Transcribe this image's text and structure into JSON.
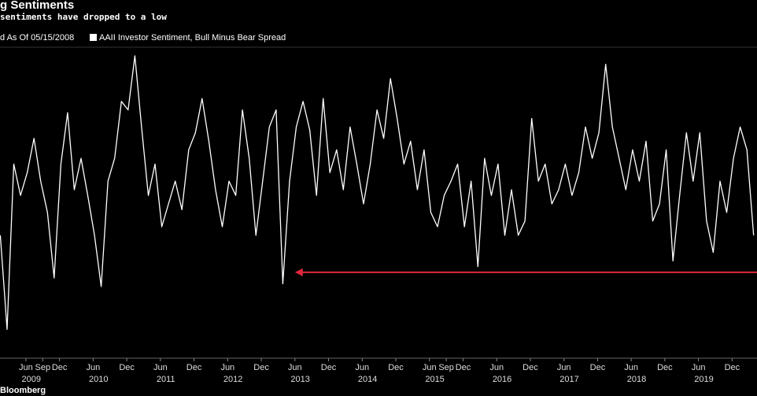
{
  "chart_data": {
    "type": "line",
    "title": "g Sentiments",
    "subtitle": "sentiments have dropped to a low",
    "legend_note": "d As Of 05/15/2008",
    "source": "Bloomberg",
    "xlim": [
      2009.035,
      2020.29
    ],
    "ylim": [
      -55,
      50
    ],
    "xticks": [
      {
        "value": 2009.42,
        "label": "Jun"
      },
      {
        "value": 2009.67,
        "label": "Sep"
      },
      {
        "value": 2009.92,
        "label": "Dec"
      },
      {
        "value": 2010.42,
        "label": "Jun"
      },
      {
        "value": 2010.92,
        "label": "Dec"
      },
      {
        "value": 2011.42,
        "label": "Jun"
      },
      {
        "value": 2011.92,
        "label": "Dec"
      },
      {
        "value": 2012.42,
        "label": "Jun"
      },
      {
        "value": 2012.92,
        "label": "Dec"
      },
      {
        "value": 2013.42,
        "label": "Jun"
      },
      {
        "value": 2013.92,
        "label": "Dec"
      },
      {
        "value": 2014.42,
        "label": "Jun"
      },
      {
        "value": 2014.92,
        "label": "Dec"
      },
      {
        "value": 2015.42,
        "label": "Jun"
      },
      {
        "value": 2015.67,
        "label": "Sep"
      },
      {
        "value": 2015.92,
        "label": "Dec"
      },
      {
        "value": 2016.42,
        "label": "Jun"
      },
      {
        "value": 2016.92,
        "label": "Dec"
      },
      {
        "value": 2017.42,
        "label": "Jun"
      },
      {
        "value": 2017.92,
        "label": "Dec"
      },
      {
        "value": 2018.42,
        "label": "Jun"
      },
      {
        "value": 2018.92,
        "label": "Dec"
      },
      {
        "value": 2019.42,
        "label": "Jun"
      },
      {
        "value": 2019.92,
        "label": "Dec"
      }
    ],
    "year_ticks": [
      {
        "value": 2009.5,
        "label": "2009"
      },
      {
        "value": 2010.5,
        "label": "2010"
      },
      {
        "value": 2011.5,
        "label": "2011"
      },
      {
        "value": 2012.5,
        "label": "2012"
      },
      {
        "value": 2013.5,
        "label": "2013"
      },
      {
        "value": 2014.5,
        "label": "2014"
      },
      {
        "value": 2015.5,
        "label": "2015"
      },
      {
        "value": 2016.5,
        "label": "2016"
      },
      {
        "value": 2017.5,
        "label": "2017"
      },
      {
        "value": 2018.5,
        "label": "2018"
      },
      {
        "value": 2019.5,
        "label": "2019"
      }
    ],
    "arrow": {
      "color": "#e0283c",
      "y": -29,
      "x": [
        2013.42,
        2020.29
      ]
    },
    "x": [
      2009.04,
      2009.14,
      2009.24,
      2009.34,
      2009.44,
      2009.54,
      2009.64,
      2009.74,
      2009.84,
      2009.94,
      2010.04,
      2010.14,
      2010.24,
      2010.34,
      2010.44,
      2010.54,
      2010.64,
      2010.74,
      2010.84,
      2010.94,
      2011.04,
      2011.14,
      2011.24,
      2011.34,
      2011.44,
      2011.54,
      2011.64,
      2011.74,
      2011.84,
      2011.94,
      2012.04,
      2012.14,
      2012.24,
      2012.34,
      2012.44,
      2012.54,
      2012.64,
      2012.74,
      2012.84,
      2012.94,
      2013.04,
      2013.14,
      2013.24,
      2013.34,
      2013.44,
      2013.54,
      2013.64,
      2013.74,
      2013.84,
      2013.94,
      2014.04,
      2014.14,
      2014.24,
      2014.34,
      2014.44,
      2014.54,
      2014.64,
      2014.74,
      2014.84,
      2014.94,
      2015.04,
      2015.14,
      2015.24,
      2015.34,
      2015.44,
      2015.54,
      2015.64,
      2015.74,
      2015.84,
      2015.94,
      2016.04,
      2016.14,
      2016.24,
      2016.34,
      2016.44,
      2016.54,
      2016.64,
      2016.74,
      2016.84,
      2016.94,
      2017.04,
      2017.14,
      2017.24,
      2017.34,
      2017.44,
      2017.54,
      2017.64,
      2017.74,
      2017.84,
      2017.94,
      2018.04,
      2018.14,
      2018.24,
      2018.34,
      2018.44,
      2018.54,
      2018.64,
      2018.74,
      2018.84,
      2018.94,
      2019.04,
      2019.14,
      2019.24,
      2019.34,
      2019.44,
      2019.54,
      2019.64,
      2019.74,
      2019.84,
      2019.94,
      2020.04,
      2020.14,
      2020.24
    ],
    "series": [
      {
        "name": "AAII Investor Sentiment, Bull Minus Bear Spread",
        "color": "#ffffff",
        "values": [
          -16,
          -49,
          9,
          -2,
          6,
          18,
          3,
          -8,
          -31,
          9,
          27,
          0,
          11,
          -2,
          -16,
          -34,
          3,
          11,
          31,
          28,
          47,
          22,
          -2,
          9,
          -13,
          -5,
          3,
          -7,
          14,
          20,
          32,
          17,
          0,
          -13,
          3,
          -2,
          28,
          11,
          -16,
          3,
          22,
          28,
          -33,
          3,
          22,
          31,
          21,
          -2,
          32,
          6,
          14,
          0,
          22,
          9,
          -5,
          9,
          28,
          18,
          39,
          25,
          9,
          17,
          0,
          14,
          -8,
          -13,
          -2,
          3,
          9,
          -13,
          3,
          -27,
          11,
          -2,
          9,
          -16,
          0,
          -16,
          -11,
          25,
          3,
          9,
          -5,
          0,
          9,
          -2,
          6,
          22,
          11,
          20,
          44,
          22,
          11,
          0,
          14,
          3,
          17,
          -11,
          -5,
          14,
          -25,
          -2,
          20,
          3,
          20,
          -11,
          -22,
          3,
          -8,
          11,
          22,
          14,
          -16
        ]
      }
    ]
  }
}
